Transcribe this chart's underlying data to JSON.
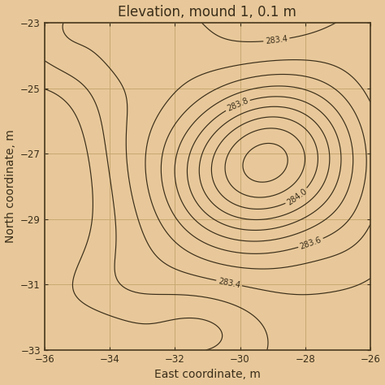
{
  "title": "Elevation, mound 1, 0.1 m",
  "xlabel": "East coordinate, m",
  "ylabel": "North coordinate, m",
  "xlim": [
    -36,
    -26
  ],
  "ylim": [
    -33,
    -23
  ],
  "xticks": [
    -36,
    -34,
    -32,
    -30,
    -28,
    -26
  ],
  "yticks": [
    -33,
    -31,
    -29,
    -27,
    -25,
    -23
  ],
  "background_color": "#e8c89a",
  "contour_color": "#3a2e1a",
  "grid_color": "#c8a870",
  "label_levels": [
    283.4,
    283.6,
    283.8,
    284.0
  ],
  "title_fontsize": 12,
  "label_fontsize": 7,
  "axis_label_fontsize": 10
}
